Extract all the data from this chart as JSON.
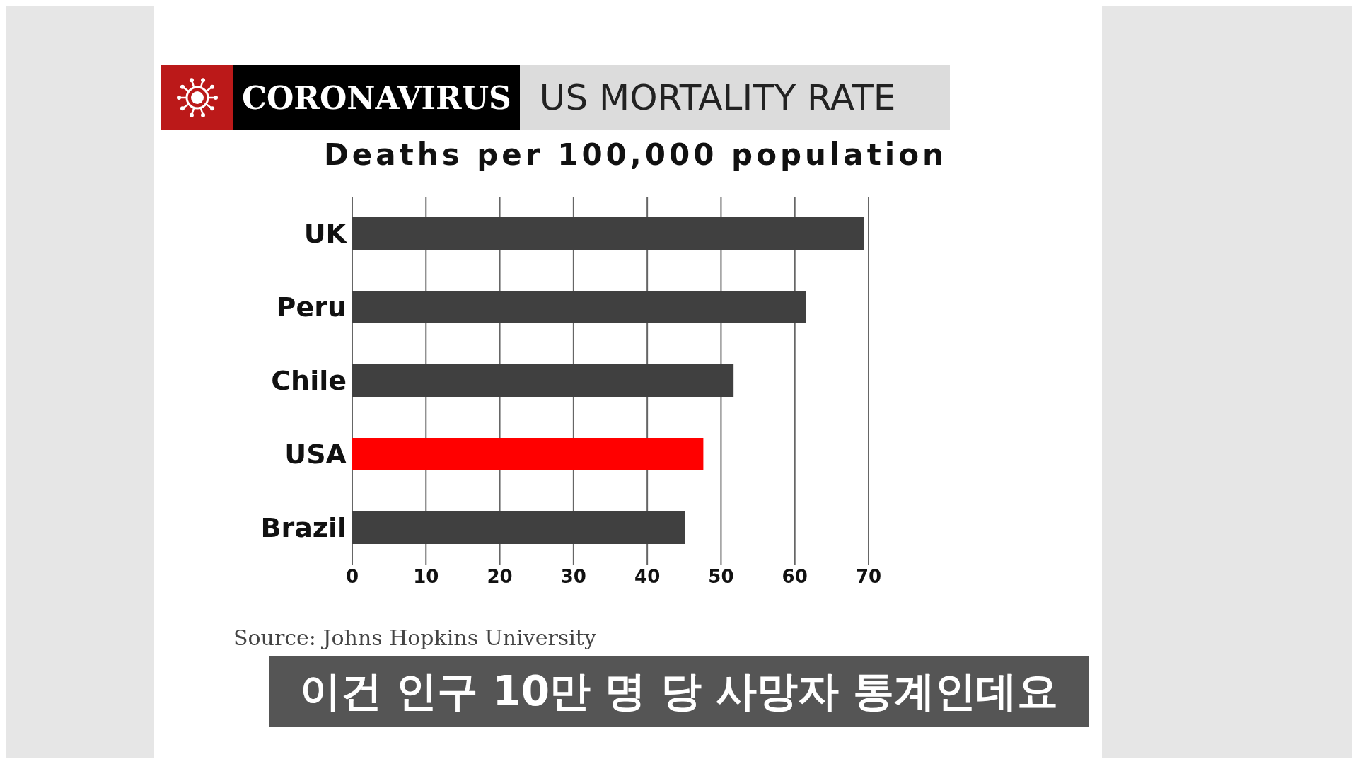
{
  "chart_data": {
    "type": "bar",
    "orientation": "horizontal",
    "title": "US MORTALITY RATE",
    "subtitle": "Deaths per 100,000 population",
    "categories": [
      "UK",
      "Peru",
      "Chile",
      "USA",
      "Brazil"
    ],
    "values": [
      69.4,
      61.5,
      51.7,
      47.6,
      45.1
    ],
    "colors": [
      "#404040",
      "#404040",
      "#404040",
      "#ff0000",
      "#404040"
    ],
    "xlim": [
      0,
      70
    ],
    "xticks": [
      0,
      10,
      20,
      30,
      40,
      50,
      60,
      70
    ],
    "grid": "x",
    "annotations": [
      "CORONAVIRUS",
      "Source: Johns Hopkins University",
      "이건 인구 10만 명 당 사망자 통계인데요"
    ]
  }
}
